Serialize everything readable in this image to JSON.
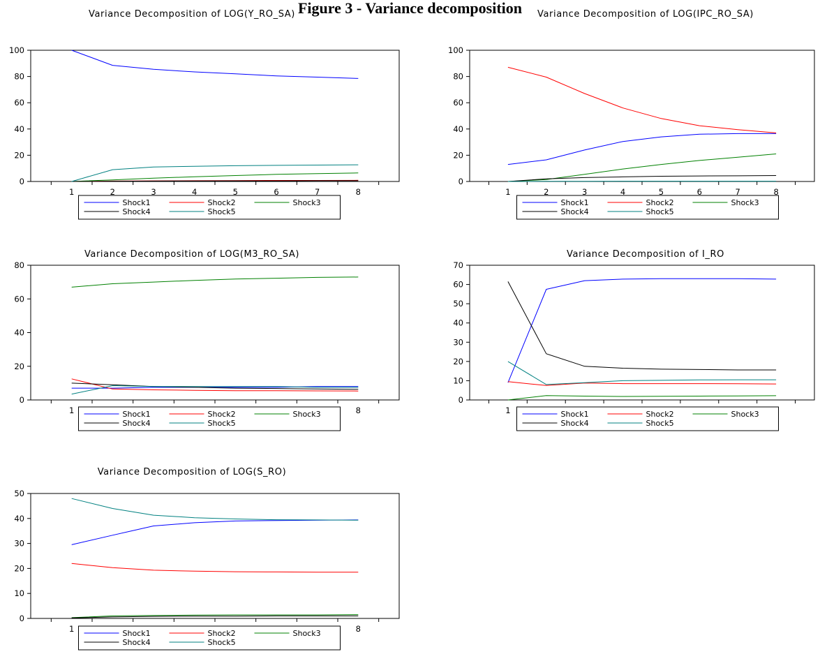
{
  "figure_title": "Figure 3 - Variance decomposition",
  "colors": {
    "Shock1": "#0000ff",
    "Shock2": "#ff0000",
    "Shock3": "#008000",
    "Shock4": "#000000",
    "Shock5": "#008080"
  },
  "chart_data": [
    {
      "type": "line",
      "title": "Variance Decomposition of LOG(Y_RO_SA)",
      "x": [
        1,
        2,
        3,
        4,
        5,
        6,
        7,
        8
      ],
      "ylim": [
        0,
        100
      ],
      "yticks": [
        0,
        20,
        40,
        60,
        80,
        100
      ],
      "legend": "bottom",
      "series": [
        {
          "name": "Shock1",
          "values": [
            100,
            88.5,
            85.5,
            83.5,
            82,
            80.5,
            79.5,
            78.5
          ]
        },
        {
          "name": "Shock2",
          "values": [
            0,
            0.3,
            0.5,
            0.6,
            0.7,
            0.8,
            0.8,
            0.9
          ]
        },
        {
          "name": "Shock3",
          "values": [
            0,
            1.2,
            2.5,
            3.6,
            4.5,
            5.4,
            6.0,
            6.5
          ]
        },
        {
          "name": "Shock4",
          "values": [
            0,
            0.2,
            0.3,
            0.4,
            0.5,
            0.5,
            0.6,
            0.6
          ]
        },
        {
          "name": "Shock5",
          "values": [
            0,
            9.0,
            11.0,
            11.6,
            12.0,
            12.3,
            12.5,
            12.7
          ]
        }
      ]
    },
    {
      "type": "line",
      "title": "Variance Decomposition of LOG(IPC_RO_SA)",
      "x": [
        1,
        2,
        3,
        4,
        5,
        6,
        7,
        8
      ],
      "ylim": [
        0,
        100
      ],
      "yticks": [
        0,
        20,
        40,
        60,
        80,
        100
      ],
      "legend": "bottom",
      "series": [
        {
          "name": "Shock1",
          "values": [
            13,
            16.5,
            24,
            30.5,
            34,
            36,
            36.5,
            36.5
          ]
        },
        {
          "name": "Shock2",
          "values": [
            87,
            79.5,
            67,
            56,
            48,
            42.5,
            39.5,
            37
          ]
        },
        {
          "name": "Shock3",
          "values": [
            0,
            1.5,
            5.5,
            9.5,
            13,
            16,
            18.5,
            21
          ]
        },
        {
          "name": "Shock4",
          "values": [
            0,
            2,
            3,
            3.5,
            4,
            4.2,
            4.3,
            4.5
          ]
        },
        {
          "name": "Shock5",
          "values": [
            0,
            0.1,
            0.1,
            0.2,
            0.2,
            0.2,
            0.2,
            0.2
          ]
        }
      ]
    },
    {
      "type": "line",
      "title": "Variance Decomposition of LOG(M3_RO_SA)",
      "x": [
        1,
        2,
        3,
        4,
        5,
        6,
        7,
        8
      ],
      "ylim": [
        0,
        80
      ],
      "yticks": [
        0,
        20,
        40,
        60,
        80
      ],
      "legend": "bottom",
      "series": [
        {
          "name": "Shock1",
          "values": [
            7,
            7,
            7.5,
            7.5,
            7.5,
            7.5,
            8,
            8
          ]
        },
        {
          "name": "Shock2",
          "values": [
            12.5,
            6.5,
            6,
            5.7,
            5.5,
            5.5,
            5.4,
            5.3
          ]
        },
        {
          "name": "Shock3",
          "values": [
            67,
            69,
            70,
            71,
            71.8,
            72.3,
            72.8,
            73
          ]
        },
        {
          "name": "Shock4",
          "values": [
            10,
            9,
            8,
            7.5,
            7,
            6.8,
            6.5,
            6.3
          ]
        },
        {
          "name": "Shock5",
          "values": [
            3.5,
            8.5,
            8,
            8,
            8,
            8,
            7.5,
            7.5
          ]
        }
      ]
    },
    {
      "type": "line",
      "title": "Variance Decomposition of I_RO",
      "x": [
        1,
        2,
        3,
        4,
        5,
        6,
        7,
        8
      ],
      "ylim": [
        0,
        70
      ],
      "yticks": [
        0,
        10,
        20,
        30,
        40,
        50,
        60,
        70
      ],
      "legend": "bottom",
      "series": [
        {
          "name": "Shock1",
          "values": [
            9,
            57.5,
            62,
            62.8,
            63,
            63,
            63,
            62.8
          ]
        },
        {
          "name": "Shock2",
          "values": [
            9.5,
            7.5,
            8.8,
            8.5,
            8.5,
            8.5,
            8.4,
            8.3
          ]
        },
        {
          "name": "Shock3",
          "values": [
            0,
            2.3,
            2,
            1.8,
            1.9,
            2,
            2.1,
            2.2
          ]
        },
        {
          "name": "Shock4",
          "values": [
            61.5,
            24,
            17.5,
            16.5,
            16,
            15.8,
            15.6,
            15.6
          ]
        },
        {
          "name": "Shock5",
          "values": [
            20,
            8,
            9,
            10,
            10.2,
            10.4,
            10.5,
            10.5
          ]
        }
      ]
    },
    {
      "type": "line",
      "title": "Variance Decomposition of LOG(S_RO)",
      "x": [
        1,
        2,
        3,
        4,
        5,
        6,
        7,
        8
      ],
      "ylim": [
        0,
        50
      ],
      "yticks": [
        0,
        10,
        20,
        30,
        40,
        50
      ],
      "legend": "bottom",
      "series": [
        {
          "name": "Shock1",
          "values": [
            29.5,
            33.3,
            37,
            38.3,
            39,
            39.2,
            39.3,
            39.4
          ]
        },
        {
          "name": "Shock2",
          "values": [
            22,
            20.3,
            19.3,
            18.9,
            18.7,
            18.6,
            18.5,
            18.5
          ]
        },
        {
          "name": "Shock3",
          "values": [
            0.3,
            1,
            1.2,
            1.3,
            1.4,
            1.4,
            1.4,
            1.5
          ]
        },
        {
          "name": "Shock4",
          "values": [
            0.2,
            0.6,
            0.8,
            0.9,
            0.9,
            1,
            1,
            1
          ]
        },
        {
          "name": "Shock5",
          "values": [
            48,
            44,
            41.3,
            40.3,
            39.8,
            39.5,
            39.4,
            39.3
          ]
        }
      ]
    }
  ]
}
